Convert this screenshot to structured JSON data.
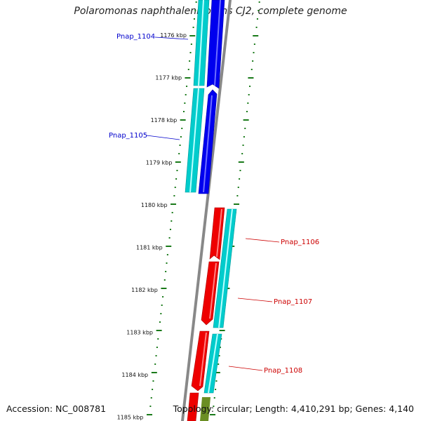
{
  "title": "Polaromonas naphthalenivorans CJ2, complete genome",
  "footer": {
    "accession": "Accession: NC_008781",
    "topology": "Topology: circular; Length: 4,410,291 bp; Genes: 4,140"
  },
  "colors": {
    "forward_gene": "#0000ee",
    "reverse_gene": "#ee0000",
    "cds_track": "#00cccc",
    "backbone": "#888888",
    "tick": "#1a7a1a",
    "label_forward": "#0000cc",
    "label_reverse": "#cc0000",
    "olive_feature": "#6b8e23"
  },
  "position_labels": [
    "1176 kbp",
    "1177 kbp",
    "1178 kbp",
    "1179 kbp",
    "1180 kbp",
    "1181 kbp",
    "1182 kbp",
    "1183 kbp",
    "1184 kbp",
    "1185 kbp"
  ],
  "gene_labels": [
    {
      "text": "Pnap_1104",
      "strand": "forward"
    },
    {
      "text": "Pnap_1105",
      "strand": "forward"
    },
    {
      "text": "Pnap_1106",
      "strand": "reverse"
    },
    {
      "text": "Pnap_1107",
      "strand": "reverse"
    },
    {
      "text": "Pnap_1108",
      "strand": "reverse"
    }
  ]
}
